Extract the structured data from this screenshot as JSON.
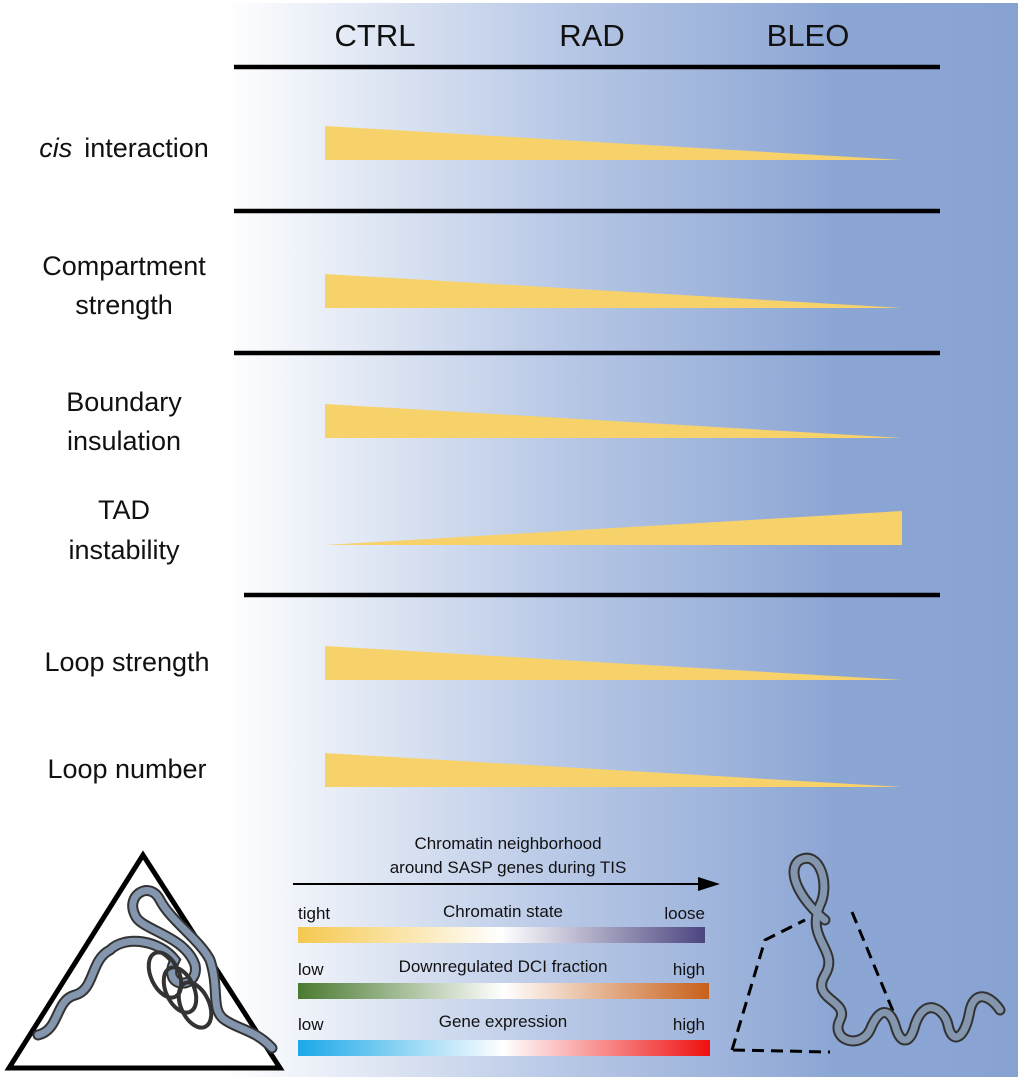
{
  "columns": [
    "CTRL",
    "RAD",
    "BLEO"
  ],
  "rows": [
    {
      "label_italic": "cis",
      "label": "interaction",
      "trend": "decrease"
    },
    {
      "label_lines": [
        "Compartment",
        "strength"
      ],
      "trend": "decrease"
    },
    {
      "label_lines": [
        "Boundary",
        "insulation"
      ],
      "trend": "decrease"
    },
    {
      "label_lines": [
        "TAD",
        "instability"
      ],
      "trend": "increase"
    },
    {
      "label": "Loop strength",
      "trend": "decrease"
    },
    {
      "label": "Loop number",
      "trend": "decrease"
    }
  ],
  "legend": {
    "title_lines": [
      "Chromatin neighborhood",
      "around SASP genes during TIS"
    ],
    "scales": [
      {
        "title": "Chromatin state",
        "low": "tight",
        "high": "loose",
        "colors": [
          "#f5c84e",
          "#ffffff",
          "#4b4580"
        ]
      },
      {
        "title": "Downregulated DCI fraction",
        "low": "low",
        "high": "high",
        "colors": [
          "#4a7a30",
          "#ffffff",
          "#c8601a"
        ]
      },
      {
        "title": "Gene expression",
        "low": "low",
        "high": "high",
        "colors": [
          "#1aa8e8",
          "#ffffff",
          "#f01010"
        ]
      }
    ]
  },
  "colors": {
    "wedge": "#f7d26a",
    "bg_end": "#8aa4d2",
    "chromatin": "#8496ae"
  }
}
